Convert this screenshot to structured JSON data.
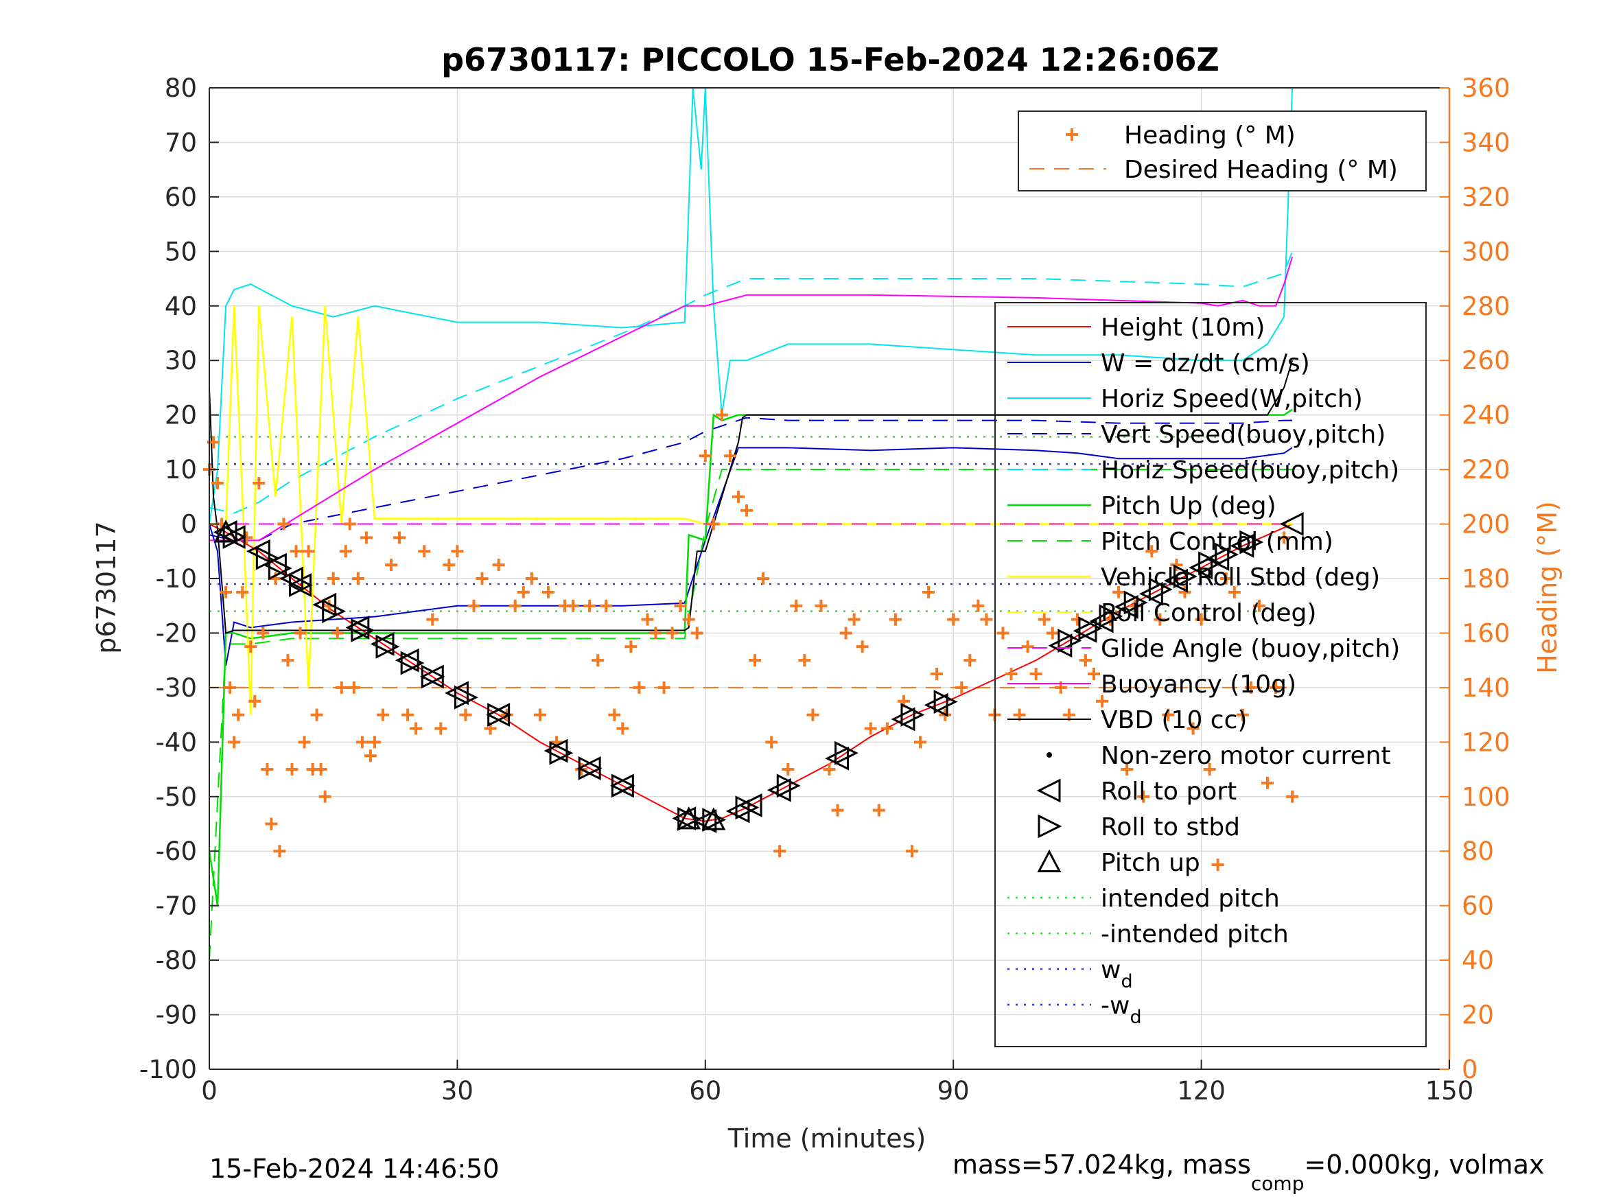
{
  "chart_data": {
    "type": "line",
    "title": "p6730117: PICCOLO 15-Feb-2024 12:26:06Z",
    "xlabel": "Time (minutes)",
    "ylabel": "p6730117",
    "y2label": "Heading (°M)",
    "xlim": [
      0,
      150
    ],
    "ylim": [
      -100,
      80
    ],
    "y2lim": [
      0,
      360
    ],
    "xticks": [
      0,
      30,
      60,
      90,
      120,
      150
    ],
    "xtick_labels": [
      "0",
      "30",
      "60",
      "90",
      "120",
      "150"
    ],
    "yticks": [
      -100,
      -90,
      -80,
      -70,
      -60,
      -50,
      -40,
      -30,
      -20,
      -10,
      0,
      10,
      20,
      30,
      40,
      50,
      60,
      70,
      80
    ],
    "ytick_labels": [
      "-100",
      "-90",
      "-80",
      "-70",
      "-60",
      "-50",
      "-40",
      "-30",
      "-20",
      "-10",
      "0",
      "10",
      "20",
      "30",
      "40",
      "50",
      "60",
      "70",
      "80"
    ],
    "y2ticks": [
      0,
      20,
      40,
      60,
      80,
      100,
      120,
      140,
      160,
      180,
      200,
      220,
      240,
      260,
      280,
      300,
      320,
      340,
      360
    ],
    "y2tick_labels": [
      "0",
      "20",
      "40",
      "60",
      "80",
      "100",
      "120",
      "140",
      "160",
      "180",
      "200",
      "220",
      "240",
      "260",
      "280",
      "300",
      "320",
      "340",
      "360"
    ],
    "grid": true,
    "colors": {
      "axis": "#262626",
      "right_axis": "#f47920",
      "grid": "#dcdcdc",
      "height": "#ff0000",
      "w": "#0000cc",
      "horiz_speed": "#00e5ee",
      "vert_speed": "#0000cc",
      "pitch": "#00dd00",
      "roll": "#ffff00",
      "glide_angle": "#ff00ff",
      "buoyancy": "#ff00ff",
      "vbd": "#000000",
      "heading": "#f47920",
      "intended_pitch": "#33dd33",
      "wd": "#3333dd"
    },
    "series": [
      {
        "name": "Height (10m)",
        "axis": "left",
        "x": [
          0,
          2,
          6,
          10,
          15,
          20,
          25,
          30,
          35,
          40,
          45,
          50,
          55,
          57.5,
          60,
          62,
          65,
          70,
          75,
          80,
          85,
          90,
          95,
          100,
          105,
          110,
          115,
          120,
          125,
          131
        ],
        "y": [
          0,
          -1.5,
          -5,
          -10,
          -16,
          -21,
          -26,
          -31,
          -35,
          -40,
          -44,
          -48,
          -52,
          -54,
          -54.5,
          -54,
          -52,
          -48,
          -44,
          -39,
          -35,
          -32,
          -28.5,
          -25,
          -20.5,
          -16,
          -12,
          -8,
          -4,
          0
        ]
      },
      {
        "name": "W = dz/dt (cm/s)",
        "axis": "left",
        "x": [
          0,
          1,
          2,
          3,
          5,
          10,
          20,
          30,
          40,
          50,
          57.5,
          60,
          64,
          70,
          80,
          90,
          100,
          105,
          110,
          115,
          125,
          130,
          131
        ],
        "y": [
          0,
          -5,
          -26,
          -18,
          -19,
          -18,
          -17,
          -15,
          -15,
          -15,
          -14.5,
          -3,
          14,
          14,
          13.5,
          14,
          13.5,
          13,
          12,
          12,
          12,
          13,
          14
        ]
      },
      {
        "name": "Horiz Speed(W,pitch)",
        "axis": "left",
        "x": [
          0,
          1,
          2,
          3,
          5,
          10,
          15,
          20,
          30,
          40,
          50,
          57.5,
          58.5,
          59.5,
          60,
          61,
          62,
          63,
          65,
          70,
          80,
          90,
          100,
          110,
          120,
          125,
          128,
          130,
          131
        ],
        "y": [
          0,
          10,
          40,
          43,
          44,
          40,
          38,
          40,
          37,
          37,
          36,
          37,
          80,
          65,
          80,
          40,
          20,
          30,
          30,
          33,
          33,
          32,
          31,
          31,
          30,
          30,
          33,
          38,
          80
        ]
      },
      {
        "name": "Vert Speed(buoy,pitch)",
        "axis": "left",
        "x": [
          0,
          3,
          6,
          10,
          20,
          30,
          40,
          50,
          57.5,
          60,
          65,
          70,
          80,
          90,
          100,
          110,
          120,
          125,
          130,
          131
        ],
        "y": [
          -2,
          -3,
          -3,
          0,
          3,
          6,
          9,
          12,
          15,
          17,
          19.5,
          19,
          19,
          19,
          19,
          18.5,
          18.5,
          18.5,
          19,
          19
        ]
      },
      {
        "name": "Horiz Speed(buoy,pitch)",
        "axis": "left",
        "x": [
          0,
          3,
          6,
          10,
          20,
          30,
          40,
          50,
          57.5,
          60,
          65,
          70,
          80,
          90,
          100,
          110,
          120,
          125,
          130,
          131
        ],
        "y": [
          3,
          2,
          4,
          8,
          16,
          23,
          29,
          35,
          40,
          42,
          45,
          45,
          45,
          45,
          45,
          44.5,
          44,
          43.5,
          46,
          50
        ]
      },
      {
        "name": "Pitch Up (deg)",
        "axis": "left",
        "x": [
          0,
          1,
          2,
          3,
          5,
          10,
          20,
          30,
          40,
          50,
          57.5,
          58,
          60,
          61,
          62,
          64,
          70,
          80,
          90,
          100,
          110,
          120,
          130,
          131
        ],
        "y": [
          -60,
          -70,
          -20,
          -20,
          -21,
          -20,
          -20,
          -20,
          -20,
          -20,
          -20,
          -2,
          -3,
          20,
          19,
          20,
          20,
          20,
          20,
          20,
          20,
          20,
          20,
          21
        ]
      },
      {
        "name": "Pitch Control (mm)",
        "axis": "left",
        "x": [
          0,
          2,
          5,
          10,
          20,
          30,
          40,
          50,
          57.5,
          60,
          62,
          64,
          70,
          80,
          90,
          100,
          110,
          120,
          130,
          131
        ],
        "y": [
          -80,
          -22,
          -22,
          -21,
          -21,
          -21,
          -21,
          -21,
          -21,
          -1,
          10,
          10,
          10,
          10,
          10,
          10,
          10,
          10,
          10,
          10
        ]
      },
      {
        "name": "Vehicle Roll Stbd (deg)",
        "axis": "left",
        "x": [
          0,
          2,
          3,
          4,
          5,
          6,
          8,
          10,
          12,
          14,
          16,
          18,
          20,
          25,
          30,
          35,
          40,
          45,
          50,
          55,
          57.5,
          60,
          62,
          65,
          70,
          75,
          80,
          85,
          90,
          95,
          100,
          105,
          110,
          115,
          120,
          125,
          130,
          131
        ],
        "y": [
          0,
          0,
          40,
          5,
          -35,
          40,
          5,
          38,
          -30,
          40,
          0,
          38,
          1,
          1,
          1,
          1,
          1,
          1,
          1,
          1,
          1,
          0,
          0,
          0,
          0,
          0,
          0,
          0,
          0,
          0,
          0,
          0,
          0,
          0,
          0,
          0,
          0,
          0
        ]
      },
      {
        "name": "Roll Control (deg)",
        "axis": "left",
        "x": [
          0,
          5,
          10,
          20,
          30,
          40,
          50,
          57.5,
          60,
          65,
          70,
          80,
          90,
          100,
          110,
          120,
          130,
          131
        ],
        "y": [
          0,
          0,
          0,
          0,
          0,
          0,
          0,
          0,
          0,
          0,
          0,
          0,
          0,
          0,
          0,
          0,
          0,
          0
        ]
      },
      {
        "name": "Glide Angle (buoy,pitch)",
        "axis": "left",
        "x": [
          0,
          20,
          40,
          57.5,
          60,
          80,
          100,
          120,
          131
        ],
        "y": [
          0,
          0,
          0,
          0,
          0,
          0,
          0,
          0,
          0
        ]
      },
      {
        "name": "Buoyancy (10g)",
        "axis": "left",
        "x": [
          0,
          3,
          6,
          20,
          40,
          57.5,
          60,
          65,
          80,
          100,
          110,
          120,
          122,
          125,
          127,
          129,
          130,
          131
        ],
        "y": [
          -3,
          -3,
          -3,
          10,
          27,
          40,
          40,
          42,
          42,
          41.5,
          41,
          40.5,
          40,
          41,
          40,
          40,
          44,
          49
        ]
      },
      {
        "name": "VBD (10 cc)",
        "axis": "left",
        "x": [
          0,
          0.5,
          1,
          2,
          3,
          5,
          10,
          20,
          30,
          40,
          50,
          57.5,
          58,
          59,
          60,
          61,
          62,
          63,
          64,
          64.5,
          65,
          70,
          80,
          90,
          100,
          110,
          120,
          125,
          128,
          130,
          131
        ],
        "y": [
          25,
          5,
          -1,
          -20,
          -19.5,
          -19.5,
          -19.5,
          -19.5,
          -19.5,
          -19.5,
          -19.5,
          -19.5,
          -19,
          -5,
          -5,
          0,
          5,
          10,
          15,
          19.5,
          20,
          20,
          20,
          20,
          20,
          20,
          20,
          20,
          20,
          25,
          30
        ]
      }
    ],
    "heading": {
      "name": "Heading (° M)",
      "axis": "right",
      "x": [
        0,
        0.5,
        1,
        1.5,
        2,
        2.5,
        3,
        3.5,
        4,
        4.5,
        5,
        5.5,
        6,
        6.5,
        7,
        7.5,
        8,
        8.5,
        9,
        9.5,
        10,
        10.5,
        11,
        11.5,
        12,
        12.5,
        13,
        13.5,
        14,
        14.5,
        15,
        15.5,
        16,
        16.5,
        17,
        17.5,
        18,
        18.5,
        19,
        19.5,
        20,
        21,
        22,
        23,
        24,
        25,
        26,
        27,
        28,
        29,
        30,
        31,
        32,
        33,
        34,
        35,
        36,
        37,
        38,
        39,
        40,
        41,
        42,
        43,
        44,
        45,
        46,
        47,
        48,
        49,
        50,
        51,
        52,
        53,
        54,
        55,
        56,
        57,
        58,
        59,
        60,
        61,
        62,
        63,
        64,
        65,
        66,
        67,
        68,
        69,
        70,
        71,
        72,
        73,
        74,
        75,
        76,
        77,
        78,
        79,
        80,
        81,
        82,
        83,
        84,
        85,
        86,
        87,
        88,
        89,
        90,
        91,
        92,
        93,
        94,
        95,
        96,
        97,
        98,
        99,
        100,
        101,
        102,
        103,
        104,
        105,
        106,
        107,
        108,
        109,
        110,
        111,
        112,
        113,
        114,
        115,
        116,
        117,
        118,
        119,
        120,
        121,
        122,
        123,
        124,
        125,
        126,
        127,
        128,
        129,
        130,
        131
      ],
      "y": [
        220,
        230,
        215,
        200,
        175,
        140,
        120,
        130,
        175,
        195,
        155,
        135,
        215,
        160,
        110,
        90,
        180,
        80,
        200,
        150,
        110,
        190,
        160,
        120,
        190,
        110,
        130,
        110,
        100,
        170,
        180,
        160,
        140,
        190,
        200,
        140,
        180,
        120,
        195,
        115,
        120,
        130,
        185,
        195,
        130,
        125,
        190,
        165,
        125,
        185,
        190,
        130,
        170,
        180,
        125,
        185,
        130,
        170,
        175,
        180,
        130,
        175,
        120,
        170,
        170,
        110,
        170,
        150,
        170,
        130,
        125,
        155,
        140,
        165,
        160,
        140,
        160,
        170,
        165,
        160,
        225,
        200,
        240,
        225,
        210,
        205,
        150,
        180,
        120,
        80,
        110,
        170,
        150,
        130,
        170,
        110,
        95,
        160,
        165,
        155,
        125,
        95,
        125,
        165,
        135,
        80,
        120,
        175,
        145,
        130,
        165,
        140,
        150,
        170,
        165,
        130,
        160,
        145,
        130,
        155,
        145,
        165,
        160,
        140,
        130,
        165,
        150,
        145,
        135,
        165,
        175,
        110,
        170,
        100,
        190,
        165,
        130,
        185,
        175,
        125,
        165,
        110,
        75,
        180,
        175,
        130,
        140,
        170,
        105,
        140,
        195,
        100
      ]
    },
    "desired_heading": {
      "name": "Desired Heading (° M)",
      "axis": "right",
      "x": [
        0,
        131
      ],
      "y": [
        140,
        140
      ]
    },
    "intended_pitch": {
      "name": "intended pitch",
      "value": 16
    },
    "neg_intended_pitch": {
      "name": "-intended pitch",
      "value": -16
    },
    "wd": {
      "name": "w",
      "sub": "d",
      "value": 11
    },
    "neg_wd": {
      "name": "-w",
      "sub": "d",
      "value": -11
    },
    "markers": {
      "roll_port": {
        "name": "Roll to port",
        "x": [
          2,
          3,
          6,
          8,
          10,
          11,
          14,
          18,
          21,
          24,
          27,
          30,
          35,
          42,
          46,
          50,
          57.5,
          60,
          64,
          65.5,
          69,
          76,
          84,
          88,
          103,
          106,
          108,
          111,
          114,
          117,
          120,
          122,
          125,
          131
        ]
      },
      "roll_stbd": {
        "name": "Roll to stbd",
        "x": [
          3,
          7,
          8.5,
          11,
          15,
          18.5,
          21.5,
          24.5,
          27,
          31,
          35,
          42.5,
          46,
          50,
          58,
          61,
          65,
          70,
          77,
          85,
          89,
          104,
          106.5,
          109,
          112,
          115,
          118,
          121,
          123,
          126
        ]
      },
      "pitch_up": {
        "name": "Pitch up",
        "x": [
          2,
          58,
          61
        ]
      }
    },
    "legend_main": [
      "Height (10m)",
      "W = dz/dt (cm/s)",
      "Horiz Speed(W,pitch)",
      "Vert Speed(buoy,pitch)",
      "Horiz Speed(buoy,pitch)",
      "Pitch Up (deg)",
      "Pitch Control (mm)",
      "Vehicle Roll Stbd (deg)",
      "Roll Control (deg)",
      "Glide Angle (buoy,pitch)",
      "Buoyancy (10g)",
      "VBD (10 cc)",
      "Non-zero motor current",
      "Roll to port",
      "Roll to stbd",
      "Pitch up",
      "intended pitch",
      "-intended pitch"
    ],
    "legend_heading": [
      "Heading (° M)",
      "Desired Heading (° M)"
    ],
    "legend_placement": "top-right"
  },
  "footer": {
    "date": "15-Feb-2024 14:46:50",
    "mass_text": "mass=57.024kg, mass",
    "comp_sub": "comp",
    "mass_rest": "=0.000kg, volmax"
  }
}
